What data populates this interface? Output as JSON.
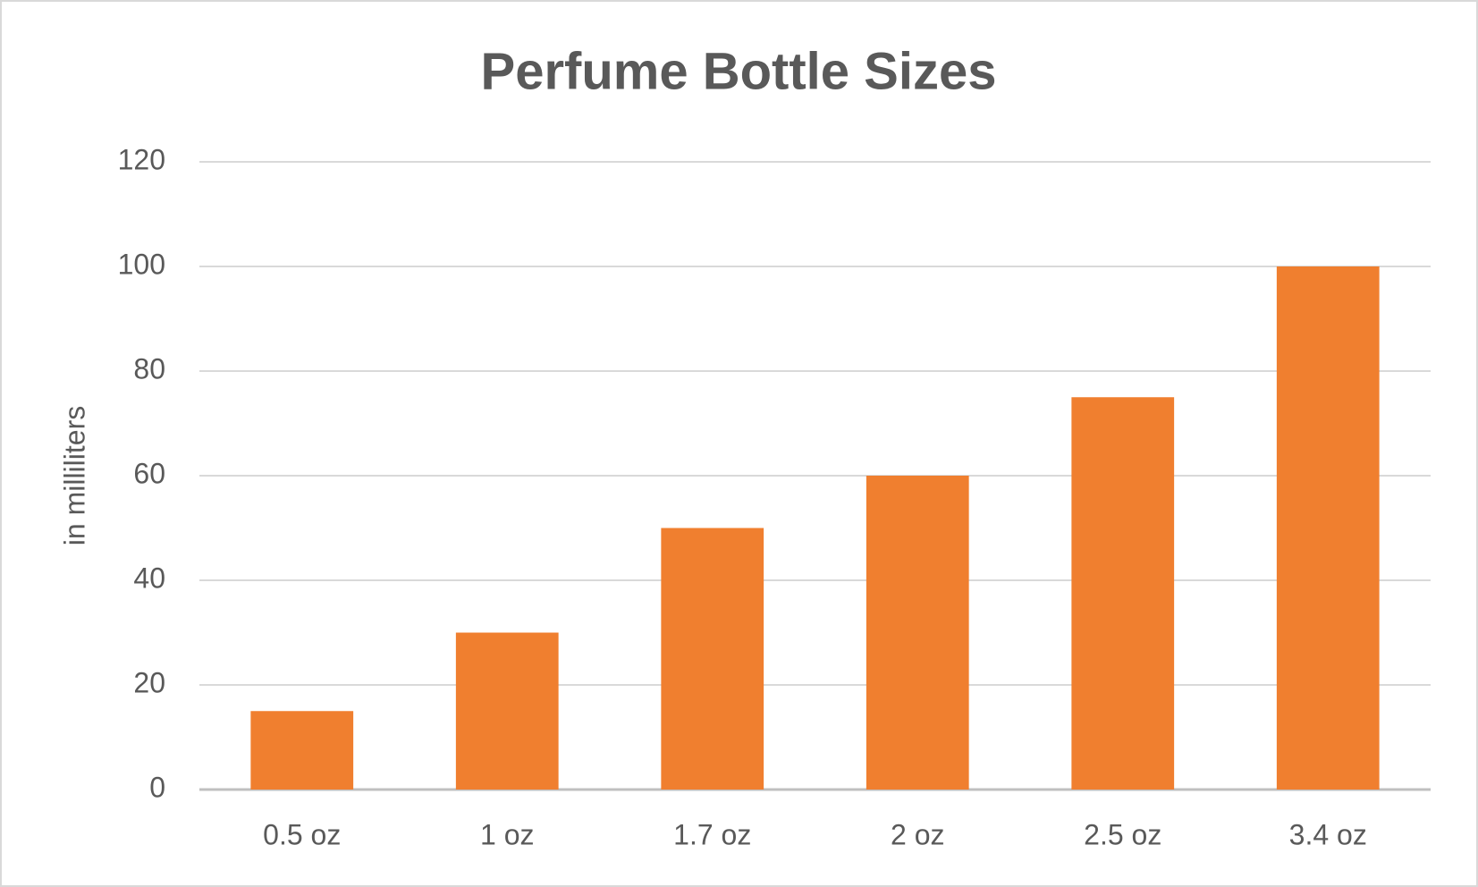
{
  "chart_data": {
    "type": "bar",
    "title": "Perfume Bottle Sizes",
    "y_label": "in milliliters",
    "categories": [
      "0.5 oz",
      "1 oz",
      "1.7 oz",
      "2 oz",
      "2.5 oz",
      "3.4 oz"
    ],
    "values": [
      15,
      30,
      50,
      60,
      75,
      100
    ],
    "color": "#f07f2f",
    "ylim": [
      0,
      120
    ],
    "yticks": [
      0,
      20,
      40,
      60,
      80,
      100,
      120
    ],
    "grid": true
  }
}
